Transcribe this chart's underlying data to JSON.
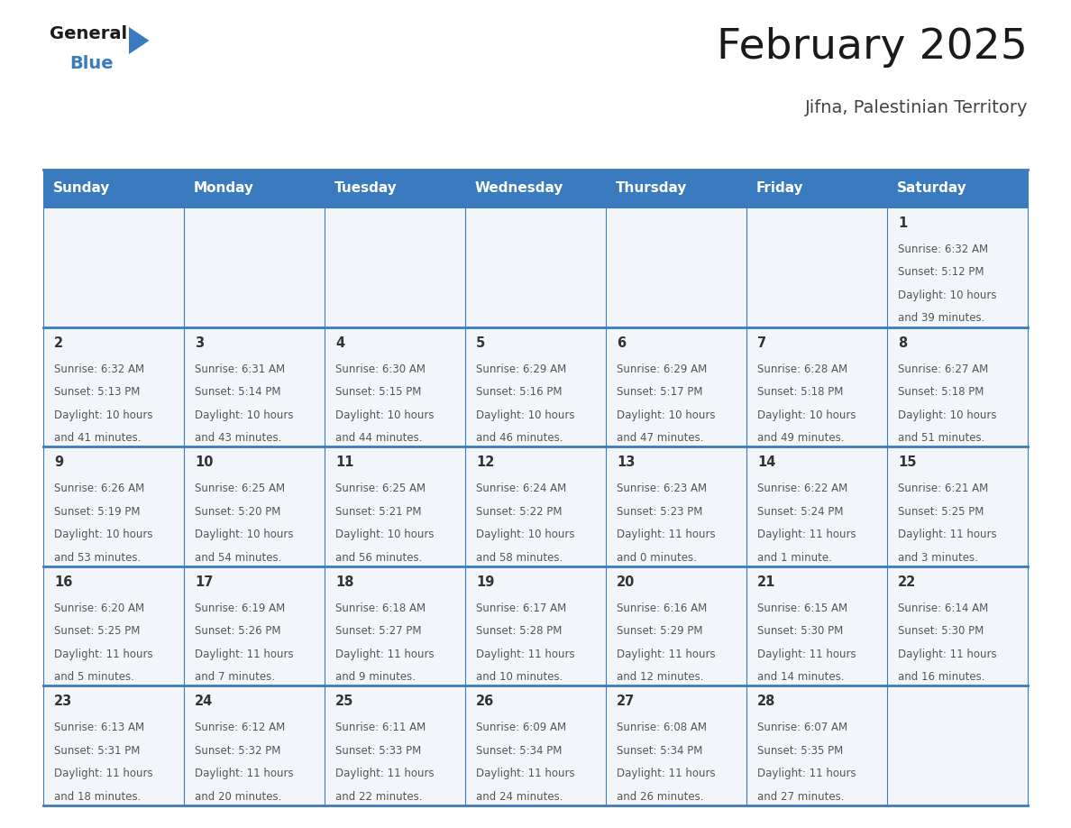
{
  "title": "February 2025",
  "subtitle": "Jifna, Palestinian Territory",
  "header_color": "#3a7abf",
  "header_text_color": "#ffffff",
  "cell_bg_color": "#f2f6fb",
  "day_names": [
    "Sunday",
    "Monday",
    "Tuesday",
    "Wednesday",
    "Thursday",
    "Friday",
    "Saturday"
  ],
  "days": [
    {
      "day": 1,
      "col": 6,
      "row": 0,
      "sunrise": "6:32 AM",
      "sunset": "5:12 PM",
      "daylight": "10 hours",
      "daylight2": "and 39 minutes."
    },
    {
      "day": 2,
      "col": 0,
      "row": 1,
      "sunrise": "6:32 AM",
      "sunset": "5:13 PM",
      "daylight": "10 hours",
      "daylight2": "and 41 minutes."
    },
    {
      "day": 3,
      "col": 1,
      "row": 1,
      "sunrise": "6:31 AM",
      "sunset": "5:14 PM",
      "daylight": "10 hours",
      "daylight2": "and 43 minutes."
    },
    {
      "day": 4,
      "col": 2,
      "row": 1,
      "sunrise": "6:30 AM",
      "sunset": "5:15 PM",
      "daylight": "10 hours",
      "daylight2": "and 44 minutes."
    },
    {
      "day": 5,
      "col": 3,
      "row": 1,
      "sunrise": "6:29 AM",
      "sunset": "5:16 PM",
      "daylight": "10 hours",
      "daylight2": "and 46 minutes."
    },
    {
      "day": 6,
      "col": 4,
      "row": 1,
      "sunrise": "6:29 AM",
      "sunset": "5:17 PM",
      "daylight": "10 hours",
      "daylight2": "and 47 minutes."
    },
    {
      "day": 7,
      "col": 5,
      "row": 1,
      "sunrise": "6:28 AM",
      "sunset": "5:18 PM",
      "daylight": "10 hours",
      "daylight2": "and 49 minutes."
    },
    {
      "day": 8,
      "col": 6,
      "row": 1,
      "sunrise": "6:27 AM",
      "sunset": "5:18 PM",
      "daylight": "10 hours",
      "daylight2": "and 51 minutes."
    },
    {
      "day": 9,
      "col": 0,
      "row": 2,
      "sunrise": "6:26 AM",
      "sunset": "5:19 PM",
      "daylight": "10 hours",
      "daylight2": "and 53 minutes."
    },
    {
      "day": 10,
      "col": 1,
      "row": 2,
      "sunrise": "6:25 AM",
      "sunset": "5:20 PM",
      "daylight": "10 hours",
      "daylight2": "and 54 minutes."
    },
    {
      "day": 11,
      "col": 2,
      "row": 2,
      "sunrise": "6:25 AM",
      "sunset": "5:21 PM",
      "daylight": "10 hours",
      "daylight2": "and 56 minutes."
    },
    {
      "day": 12,
      "col": 3,
      "row": 2,
      "sunrise": "6:24 AM",
      "sunset": "5:22 PM",
      "daylight": "10 hours",
      "daylight2": "and 58 minutes."
    },
    {
      "day": 13,
      "col": 4,
      "row": 2,
      "sunrise": "6:23 AM",
      "sunset": "5:23 PM",
      "daylight": "11 hours",
      "daylight2": "and 0 minutes."
    },
    {
      "day": 14,
      "col": 5,
      "row": 2,
      "sunrise": "6:22 AM",
      "sunset": "5:24 PM",
      "daylight": "11 hours",
      "daylight2": "and 1 minute."
    },
    {
      "day": 15,
      "col": 6,
      "row": 2,
      "sunrise": "6:21 AM",
      "sunset": "5:25 PM",
      "daylight": "11 hours",
      "daylight2": "and 3 minutes."
    },
    {
      "day": 16,
      "col": 0,
      "row": 3,
      "sunrise": "6:20 AM",
      "sunset": "5:25 PM",
      "daylight": "11 hours",
      "daylight2": "and 5 minutes."
    },
    {
      "day": 17,
      "col": 1,
      "row": 3,
      "sunrise": "6:19 AM",
      "sunset": "5:26 PM",
      "daylight": "11 hours",
      "daylight2": "and 7 minutes."
    },
    {
      "day": 18,
      "col": 2,
      "row": 3,
      "sunrise": "6:18 AM",
      "sunset": "5:27 PM",
      "daylight": "11 hours",
      "daylight2": "and 9 minutes."
    },
    {
      "day": 19,
      "col": 3,
      "row": 3,
      "sunrise": "6:17 AM",
      "sunset": "5:28 PM",
      "daylight": "11 hours",
      "daylight2": "and 10 minutes."
    },
    {
      "day": 20,
      "col": 4,
      "row": 3,
      "sunrise": "6:16 AM",
      "sunset": "5:29 PM",
      "daylight": "11 hours",
      "daylight2": "and 12 minutes."
    },
    {
      "day": 21,
      "col": 5,
      "row": 3,
      "sunrise": "6:15 AM",
      "sunset": "5:30 PM",
      "daylight": "11 hours",
      "daylight2": "and 14 minutes."
    },
    {
      "day": 22,
      "col": 6,
      "row": 3,
      "sunrise": "6:14 AM",
      "sunset": "5:30 PM",
      "daylight": "11 hours",
      "daylight2": "and 16 minutes."
    },
    {
      "day": 23,
      "col": 0,
      "row": 4,
      "sunrise": "6:13 AM",
      "sunset": "5:31 PM",
      "daylight": "11 hours",
      "daylight2": "and 18 minutes."
    },
    {
      "day": 24,
      "col": 1,
      "row": 4,
      "sunrise": "6:12 AM",
      "sunset": "5:32 PM",
      "daylight": "11 hours",
      "daylight2": "and 20 minutes."
    },
    {
      "day": 25,
      "col": 2,
      "row": 4,
      "sunrise": "6:11 AM",
      "sunset": "5:33 PM",
      "daylight": "11 hours",
      "daylight2": "and 22 minutes."
    },
    {
      "day": 26,
      "col": 3,
      "row": 4,
      "sunrise": "6:09 AM",
      "sunset": "5:34 PM",
      "daylight": "11 hours",
      "daylight2": "and 24 minutes."
    },
    {
      "day": 27,
      "col": 4,
      "row": 4,
      "sunrise": "6:08 AM",
      "sunset": "5:34 PM",
      "daylight": "11 hours",
      "daylight2": "and 26 minutes."
    },
    {
      "day": 28,
      "col": 5,
      "row": 4,
      "sunrise": "6:07 AM",
      "sunset": "5:35 PM",
      "daylight": "11 hours",
      "daylight2": "and 27 minutes."
    }
  ],
  "num_rows": 5,
  "num_cols": 7,
  "line_color": "#3a7abf",
  "cell_text_color": "#555555",
  "day_num_color": "#333333",
  "title_color": "#1a1a1a",
  "subtitle_color": "#444444",
  "logo_general_color": "#1a1a1a",
  "logo_blue_color": "#3a7abf",
  "logo_triangle_color": "#3a7abf"
}
